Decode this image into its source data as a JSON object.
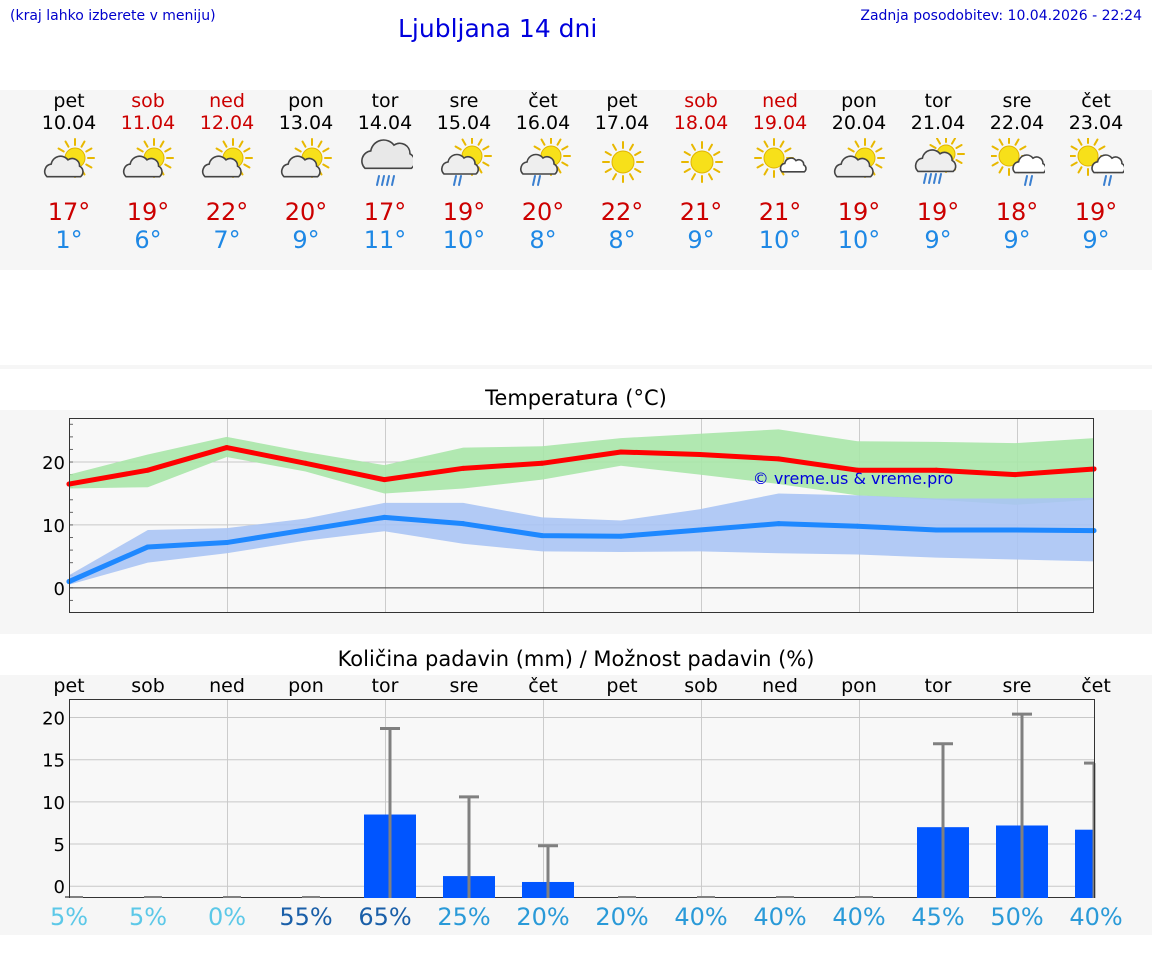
{
  "header": {
    "menu_hint": "(kraj lahko izberete v meniju)",
    "title": "Ljubljana 14 dni",
    "updated": "Zadnja posodobitev: 10.04.2026 - 22:24"
  },
  "days": [
    {
      "name": "pet",
      "date": "10.04",
      "weekend": false,
      "icon": "partly-cloudy-icon",
      "max": "17°",
      "min": "1°"
    },
    {
      "name": "sob",
      "date": "11.04",
      "weekend": true,
      "icon": "partly-cloudy-icon",
      "max": "19°",
      "min": "6°"
    },
    {
      "name": "ned",
      "date": "12.04",
      "weekend": true,
      "icon": "partly-cloudy-icon",
      "max": "22°",
      "min": "7°"
    },
    {
      "name": "pon",
      "date": "13.04",
      "weekend": false,
      "icon": "partly-cloudy-icon",
      "max": "20°",
      "min": "9°"
    },
    {
      "name": "tor",
      "date": "14.04",
      "weekend": false,
      "icon": "rain-cloud-icon",
      "max": "17°",
      "min": "11°"
    },
    {
      "name": "sre",
      "date": "15.04",
      "weekend": false,
      "icon": "sun-cloud-rain-icon",
      "max": "19°",
      "min": "10°"
    },
    {
      "name": "čet",
      "date": "16.04",
      "weekend": false,
      "icon": "sun-cloud-rain-icon",
      "max": "20°",
      "min": "8°"
    },
    {
      "name": "pet",
      "date": "17.04",
      "weekend": false,
      "icon": "sun-icon",
      "max": "22°",
      "min": "8°"
    },
    {
      "name": "sob",
      "date": "18.04",
      "weekend": true,
      "icon": "sun-icon",
      "max": "21°",
      "min": "9°"
    },
    {
      "name": "ned",
      "date": "19.04",
      "weekend": true,
      "icon": "sun-small-cloud-icon",
      "max": "21°",
      "min": "10°"
    },
    {
      "name": "pon",
      "date": "20.04",
      "weekend": false,
      "icon": "partly-cloudy-icon",
      "max": "19°",
      "min": "10°"
    },
    {
      "name": "tor",
      "date": "21.04",
      "weekend": false,
      "icon": "sun-cloud-heavy-rain-icon",
      "max": "19°",
      "min": "9°"
    },
    {
      "name": "sre",
      "date": "22.04",
      "weekend": false,
      "icon": "sun-cloud-shower-icon",
      "max": "18°",
      "min": "9°"
    },
    {
      "name": "čet",
      "date": "23.04",
      "weekend": false,
      "icon": "sun-cloud-shower-icon",
      "max": "19°",
      "min": "9°"
    }
  ],
  "colors": {
    "max_line": "#ff0000",
    "max_band": "#a8e6a8",
    "min_line": "#1e88ff",
    "min_band": "#aac4f4",
    "precip_bar": "#0055ff",
    "whisker": "#808080",
    "prob_light": "#5cc8e8",
    "prob_mid": "#2a9ad8",
    "prob_dark": "#1a5fa8"
  },
  "chart_data": [
    {
      "type": "line",
      "title": "Temperatura (°C)",
      "watermark": "© vreme.us & vreme.pro",
      "x": [
        "pet 10.04",
        "sob 11.04",
        "ned 12.04",
        "pon 13.04",
        "tor 14.04",
        "sre 15.04",
        "čet 16.04",
        "pet 17.04",
        "sob 18.04",
        "ned 19.04",
        "pon 20.04",
        "tor 21.04",
        "sre 22.04",
        "čet 23.04"
      ],
      "yticks": [
        0,
        10,
        20
      ],
      "ylim": [
        -4,
        27
      ],
      "grid": true,
      "series": [
        {
          "values": [
            16.5,
            18.7,
            22.3,
            19.8,
            17.2,
            19.0,
            19.8,
            21.6,
            21.2,
            20.5,
            18.7,
            18.7,
            18.0,
            18.9
          ],
          "band_high": [
            18.0,
            21.2,
            24.0,
            21.6,
            19.5,
            22.3,
            22.5,
            23.8,
            24.5,
            25.2,
            23.3,
            23.2,
            23.0,
            23.8
          ],
          "band_low": [
            15.8,
            16.0,
            20.8,
            18.5,
            15.0,
            15.8,
            17.2,
            19.4,
            18.0,
            16.5,
            14.7,
            14.0,
            13.2,
            14.0
          ]
        },
        {
          "values": [
            1.0,
            6.5,
            7.2,
            9.2,
            11.2,
            10.2,
            8.3,
            8.2,
            9.2,
            10.2,
            9.8,
            9.2,
            9.2,
            9.1
          ],
          "band_high": [
            2.0,
            9.2,
            9.5,
            11.0,
            13.5,
            13.5,
            11.2,
            10.7,
            12.5,
            15.0,
            14.7,
            14.2,
            14.2,
            14.3
          ],
          "band_low": [
            0.5,
            4.0,
            5.5,
            7.5,
            9.0,
            7.0,
            5.8,
            5.7,
            5.8,
            5.5,
            5.3,
            4.8,
            4.5,
            4.2
          ]
        }
      ]
    },
    {
      "type": "bar",
      "title": "Količina padavin (mm) / Možnost padavin (%)",
      "categories": [
        "pet",
        "sob",
        "ned",
        "pon",
        "tor",
        "sre",
        "čet",
        "pet",
        "sob",
        "ned",
        "pon",
        "tor",
        "sre",
        "čet"
      ],
      "values": [
        0,
        0,
        0,
        0,
        8.5,
        1.2,
        0.5,
        0,
        0,
        0,
        0,
        7.0,
        7.2,
        6.7
      ],
      "error_high": [
        0,
        0,
        0,
        0,
        18.7,
        10.6,
        4.8,
        0,
        0,
        0,
        0,
        16.9,
        20.4,
        14.6
      ],
      "probability": [
        "5%",
        "5%",
        "0%",
        "55%",
        "65%",
        "25%",
        "20%",
        "20%",
        "40%",
        "40%",
        "40%",
        "45%",
        "50%",
        "40%"
      ],
      "probability_level": [
        "light",
        "light",
        "light",
        "dark",
        "dark",
        "mid",
        "mid",
        "mid",
        "mid",
        "mid",
        "mid",
        "mid",
        "mid",
        "mid"
      ],
      "yticks": [
        0,
        5,
        10,
        15,
        20
      ],
      "ylim": [
        -1.4,
        22.2
      ],
      "grid": true
    }
  ]
}
